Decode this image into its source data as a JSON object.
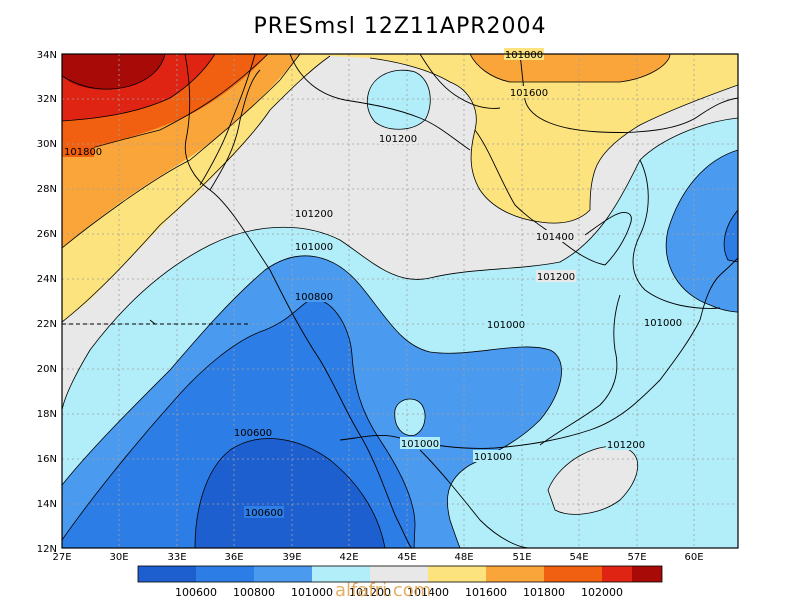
{
  "title": "PRESmsl  12Z11APR2004",
  "watermark": "alfafri.com",
  "colors": {
    "p1005": "#1e5fd0",
    "p1006": "#2d7de6",
    "p1008": "#4a9af0",
    "p1010": "#b2eefa",
    "p1012": "#e8e8e8",
    "p1014": "#fde37e",
    "p1016": "#f9a53a",
    "p1018": "#f06010",
    "p1020": "#e02414",
    "p1022": "#a80a08"
  },
  "lon_ticks": [
    "27E",
    "30E",
    "33E",
    "36E",
    "39E",
    "42E",
    "45E",
    "48E",
    "51E",
    "54E",
    "57E",
    "60E"
  ],
  "lat_ticks": [
    "12N",
    "14N",
    "16N",
    "18N",
    "20N",
    "22N",
    "24N",
    "26N",
    "28N",
    "30N",
    "32N",
    "34N"
  ],
  "contour_labels": [
    "101800",
    "101600",
    "101200",
    "101400",
    "101200",
    "101000",
    "101200",
    "100800",
    "101000",
    "101000",
    "101000",
    "101000",
    "101200",
    "100600",
    "100600",
    "101800"
  ],
  "legend": {
    "labels": [
      "100600",
      "100800",
      "101000",
      "101200",
      "101400",
      "101600",
      "101800",
      "102000"
    ],
    "colors": [
      "#1e5fd0",
      "#2d7de6",
      "#4a9af0",
      "#b2eefa",
      "#e8e8e8",
      "#fde37e",
      "#f9a53a",
      "#f06010",
      "#e02414",
      "#a80a08"
    ]
  }
}
